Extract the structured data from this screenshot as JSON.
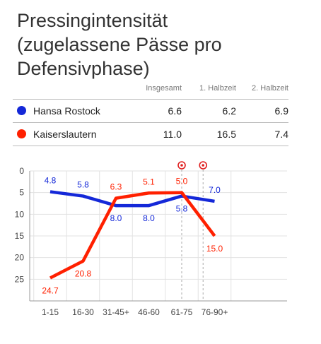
{
  "title": [
    "Pressingintensität",
    "(zugelassene Pässe pro",
    "Defensivphase)"
  ],
  "table": {
    "headers": [
      "",
      "Insgesamt",
      "1. Halbzeit",
      "2. Halbzeit"
    ],
    "rows": [
      {
        "team": "Hansa Rostock",
        "color": "#1428d8",
        "total": "6.6",
        "first": "6.2",
        "second": "6.9"
      },
      {
        "team": "Kaiserslautern",
        "color": "#ff2000",
        "total": "11.0",
        "first": "16.5",
        "second": "7.4"
      }
    ]
  },
  "chart_data": {
    "type": "line",
    "categories": [
      "1-15",
      "16-30",
      "31-45+",
      "46-60",
      "61-75",
      "76-90+"
    ],
    "ylim": [
      0,
      30
    ],
    "y_inverted": true,
    "yticks": [
      0,
      5,
      10,
      15,
      20,
      25
    ],
    "grid": true,
    "series": [
      {
        "name": "Hansa Rostock",
        "color": "#1428d8",
        "values": [
          4.8,
          5.8,
          8.0,
          8.0,
          5.8,
          7.0
        ],
        "label_pos": [
          "above",
          "above",
          "below",
          "below",
          "below",
          "above"
        ]
      },
      {
        "name": "Kaiserslautern",
        "color": "#ff2000",
        "values": [
          24.7,
          20.8,
          6.3,
          5.1,
          5.0,
          15.0
        ],
        "label_pos": [
          "below",
          "below",
          "above",
          "above",
          "above",
          "below"
        ]
      }
    ],
    "goal_markers": [
      {
        "category_position": 4.0,
        "icon": "soccer-ball-icon"
      },
      {
        "category_position": 4.65,
        "icon": "soccer-ball-icon"
      }
    ]
  }
}
